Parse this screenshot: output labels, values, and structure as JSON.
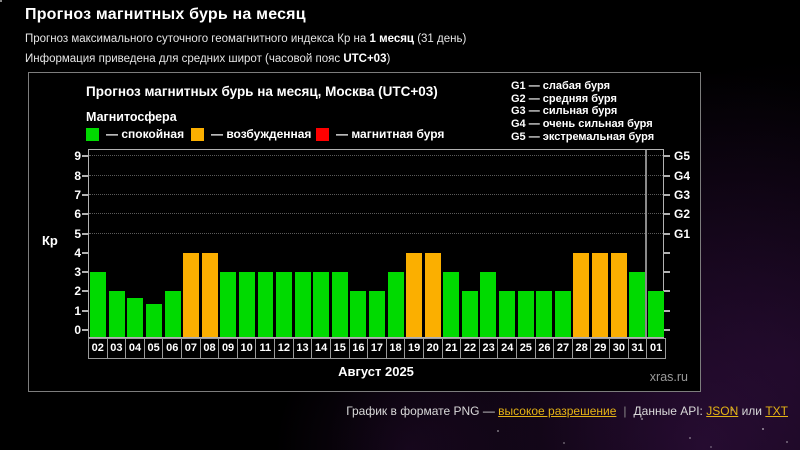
{
  "page": {
    "title": "Прогноз магнитных бурь на месяц",
    "subtitle1_prefix": "Прогноз максимального суточного геомагнитного индекса Кр на ",
    "subtitle1_bold": "1 месяц",
    "subtitle1_suffix": " (31 день)",
    "subtitle2_prefix": "Информация приведена для средних широт (часовой пояс ",
    "subtitle2_bold": "UTC+03",
    "subtitle2_suffix": ")"
  },
  "chart": {
    "title": "Прогноз магнитных бурь на месяц, Москва (UTC+03)",
    "legend_title": "Магнитосфера",
    "legend": [
      {
        "label": "— спокойная",
        "color": "#00da00"
      },
      {
        "label": "— возбужденная",
        "color": "#fbaf00"
      },
      {
        "label": "— магнитная буря",
        "color": "#ff0000"
      }
    ],
    "g_legend": [
      "G1 — слабая буря",
      "G2 — средняя буря",
      "G3 — сильная буря",
      "G4 — очень сильная буря",
      "G5 — экстремальная буря"
    ],
    "y_axis_label": "Кр",
    "x_axis_label": "Август 2025",
    "watermark": "xras.ru"
  },
  "chart_data": {
    "type": "bar",
    "title": "Прогноз магнитных бурь на месяц, Москва (UTC+03)",
    "xlabel": "Август 2025",
    "ylabel": "Кр",
    "ylim": [
      0,
      9.5
    ],
    "y_ticks": [
      0,
      1,
      2,
      3,
      4,
      5,
      6,
      7,
      8,
      9
    ],
    "gridlines_at": [
      5,
      6,
      7,
      8,
      9
    ],
    "grid": "dotted, horizontal only at G-storm levels",
    "legend_position": "top-left inside frame",
    "categories": [
      "02",
      "03",
      "04",
      "05",
      "06",
      "07",
      "08",
      "09",
      "10",
      "11",
      "12",
      "13",
      "14",
      "15",
      "16",
      "17",
      "18",
      "19",
      "20",
      "21",
      "22",
      "23",
      "24",
      "25",
      "26",
      "27",
      "28",
      "29",
      "30",
      "31",
      "01"
    ],
    "values": [
      3,
      2,
      1.67,
      1.33,
      2,
      4,
      4,
      3,
      3,
      3,
      3,
      3,
      3,
      3,
      2,
      2,
      3,
      4,
      4,
      3,
      2,
      3,
      2,
      2,
      2,
      2,
      4,
      4,
      4,
      3,
      2
    ],
    "colors": {
      "quiet": "#00da00",
      "excited": "#fbaf00",
      "storm": "#ff0000"
    },
    "color_rule": "Kp<4 quiet(green), 4<=Kp<5 excited(orange), Kp>=5 storm(red)",
    "right_axis": [
      {
        "v": 5,
        "label": "G1"
      },
      {
        "v": 6,
        "label": "G2"
      },
      {
        "v": 7,
        "label": "G3"
      },
      {
        "v": 8,
        "label": "G4"
      },
      {
        "v": 9,
        "label": "G5"
      }
    ],
    "month_separator_index": 30
  },
  "footer": {
    "png_prefix": "График в формате PNG — ",
    "png_link": "высокое разрешение",
    "separator": "|",
    "api_prefix": "Данные API: ",
    "api_link_json": "JSON",
    "api_conjunction": " или ",
    "api_link_txt": "TXT"
  }
}
